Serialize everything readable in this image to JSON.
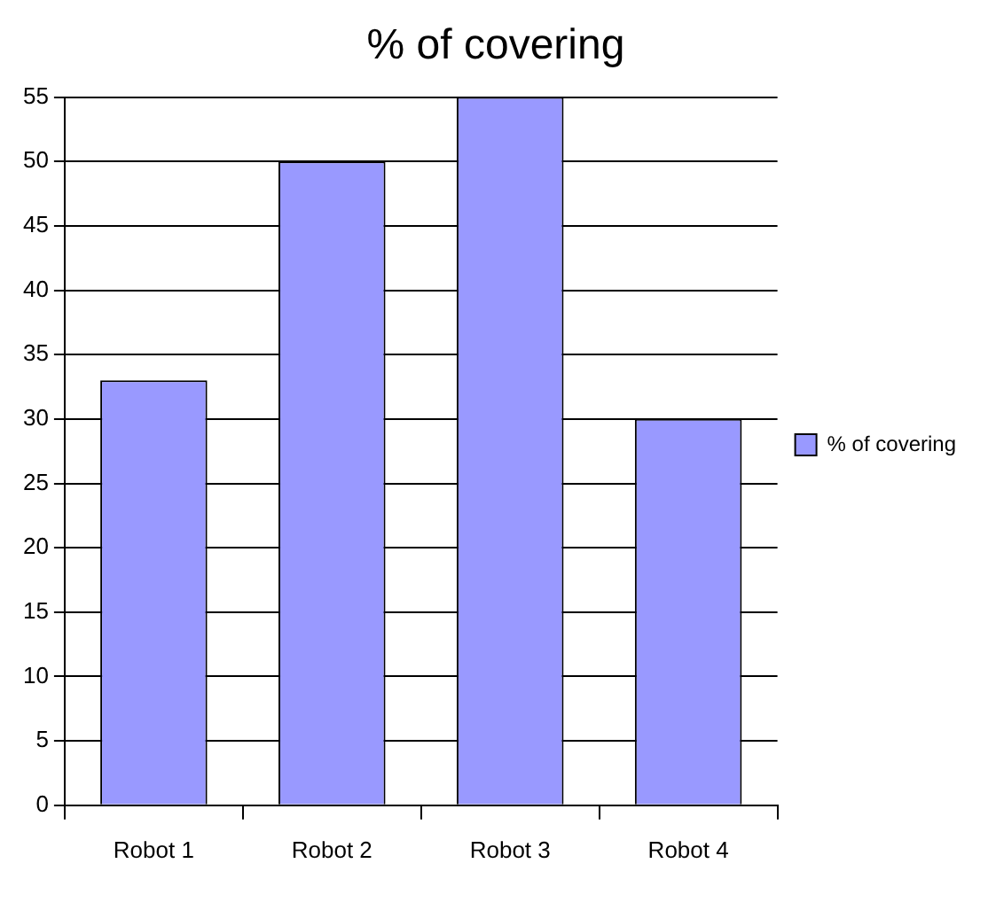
{
  "chart_data": {
    "type": "bar",
    "title": "% of covering",
    "categories": [
      "Robot 1",
      "Robot 2",
      "Robot 3",
      "Robot 4"
    ],
    "series": [
      {
        "name": "% of covering",
        "color": "#9999ff",
        "values": [
          33,
          50,
          55,
          30
        ]
      }
    ],
    "ylim": [
      0,
      55
    ],
    "yticks": [
      0,
      5,
      10,
      15,
      20,
      25,
      30,
      35,
      40,
      45,
      50,
      55
    ],
    "grid": "y",
    "legend": "right"
  }
}
